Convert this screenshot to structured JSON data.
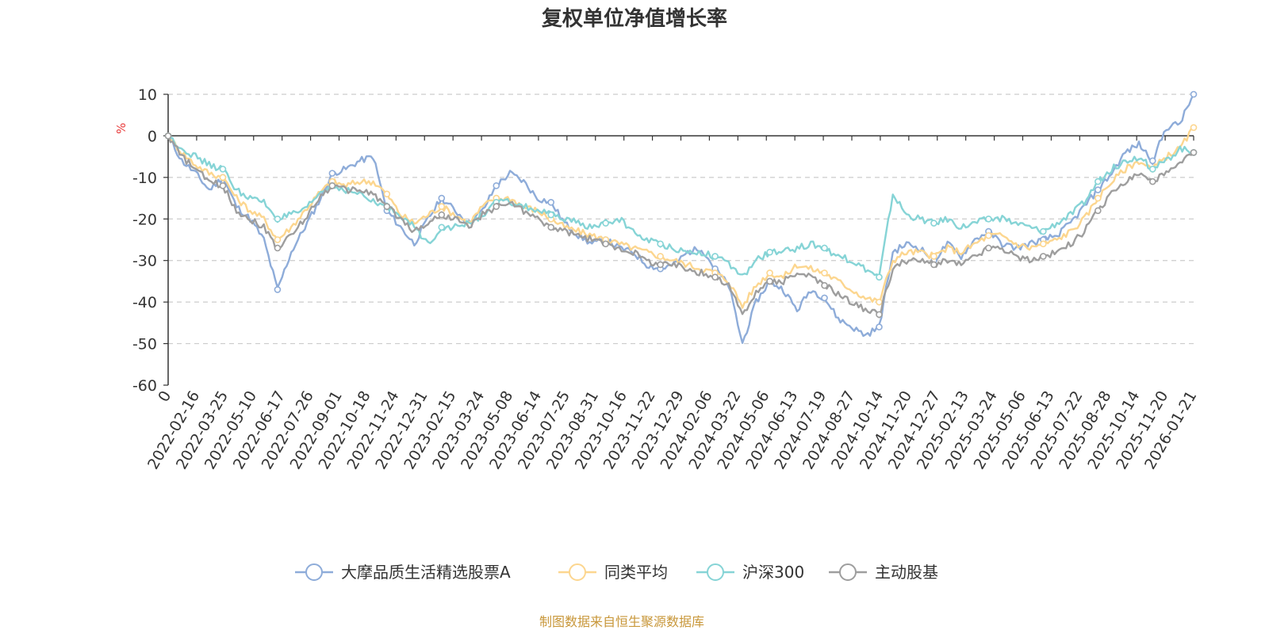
{
  "chart_data": {
    "type": "line",
    "title": "复权单位净值增长率",
    "ylabel": "%",
    "ylim": [
      -60,
      10
    ],
    "y_ticks": [
      10,
      0,
      -10,
      -20,
      -30,
      -40,
      -50,
      -60
    ],
    "x_start_label": "0",
    "x_tick_labels": [
      "2022-02-16",
      "2022-03-25",
      "2022-05-10",
      "2022-06-17",
      "2022-07-26",
      "2022-09-01",
      "2022-10-18",
      "2022-11-24",
      "2022-12-31",
      "2023-02-15",
      "2023-03-24",
      "2023-05-08",
      "2023-06-14",
      "2023-07-25",
      "2023-08-31",
      "2023-10-16",
      "2023-11-22",
      "2023-12-29",
      "2024-02-06",
      "2024-03-22",
      "2024-05-06",
      "2024-06-13",
      "2024-07-19",
      "2024-08-27",
      "2024-10-14",
      "2024-11-20",
      "2024-12-27",
      "2025-02-13",
      "2025-03-24",
      "2025-05-06",
      "2025-06-13",
      "2025-07-22",
      "2025-08-28",
      "2025-10-14",
      "2025-11-20",
      "2026-01-21"
    ],
    "grid": "horizontal dashed",
    "legend_position": "bottom",
    "series": [
      {
        "name": "大摩品质生活精选股票A",
        "color": "#8eacd9",
        "values": [
          0,
          -6,
          -9,
          -13,
          -10,
          -17,
          -20,
          -25,
          -37,
          -28,
          -22,
          -16,
          -9,
          -8,
          -6,
          -5,
          -18,
          -22,
          -26,
          -20,
          -15,
          -18,
          -21,
          -18,
          -12,
          -9,
          -11,
          -15,
          -16,
          -21,
          -24,
          -26,
          -25,
          -27,
          -28,
          -31,
          -32,
          -31,
          -28,
          -27,
          -32,
          -36,
          -50,
          -40,
          -35,
          -37,
          -42,
          -37,
          -39,
          -44,
          -46,
          -48,
          -46,
          -28,
          -26,
          -27,
          -30,
          -26,
          -29,
          -25,
          -23,
          -26,
          -27,
          -26,
          -25,
          -24,
          -21,
          -17,
          -13,
          -9,
          -4,
          -2,
          -6,
          2,
          3,
          10
        ]
      },
      {
        "name": "同类平均",
        "color": "#fcd68f",
        "values": [
          0,
          -4,
          -7,
          -9,
          -10,
          -15,
          -18,
          -20,
          -25,
          -22,
          -18,
          -14,
          -11,
          -12,
          -11,
          -11,
          -14,
          -19,
          -21,
          -19,
          -17,
          -19,
          -21,
          -17,
          -15,
          -15,
          -17,
          -18,
          -20,
          -22,
          -23,
          -24,
          -25,
          -26,
          -27,
          -28,
          -29,
          -30,
          -31,
          -32,
          -33,
          -35,
          -41,
          -36,
          -33,
          -34,
          -31,
          -32,
          -33,
          -35,
          -37,
          -39,
          -40,
          -30,
          -28,
          -28,
          -29,
          -27,
          -28,
          -26,
          -24,
          -24,
          -26,
          -27,
          -26,
          -25,
          -23,
          -20,
          -15,
          -11,
          -8,
          -6,
          -8,
          -5,
          -3,
          2
        ]
      },
      {
        "name": "沪深300",
        "color": "#86d4d6",
        "values": [
          0,
          -3,
          -5,
          -7,
          -8,
          -13,
          -15,
          -16,
          -20,
          -19,
          -18,
          -14,
          -12,
          -13,
          -14,
          -16,
          -17,
          -19,
          -22,
          -26,
          -22,
          -22,
          -21,
          -19,
          -16,
          -16,
          -17,
          -18,
          -19,
          -20,
          -21,
          -22,
          -21,
          -20,
          -23,
          -25,
          -26,
          -27,
          -28,
          -28,
          -29,
          -31,
          -34,
          -30,
          -28,
          -28,
          -27,
          -26,
          -27,
          -29,
          -30,
          -32,
          -34,
          -14,
          -19,
          -20,
          -21,
          -20,
          -22,
          -21,
          -20,
          -20,
          -21,
          -22,
          -23,
          -21,
          -19,
          -16,
          -11,
          -8,
          -6,
          -5,
          -8,
          -6,
          -3,
          -4
        ]
      },
      {
        "name": "主动股基",
        "color": "#9e9e9e",
        "values": [
          0,
          -5,
          -8,
          -11,
          -12,
          -18,
          -20,
          -22,
          -27,
          -24,
          -20,
          -15,
          -12,
          -13,
          -13,
          -14,
          -17,
          -20,
          -23,
          -21,
          -19,
          -20,
          -22,
          -19,
          -17,
          -16,
          -18,
          -20,
          -22,
          -23,
          -24,
          -25,
          -26,
          -27,
          -28,
          -30,
          -31,
          -31,
          -32,
          -33,
          -34,
          -36,
          -43,
          -38,
          -35,
          -35,
          -33,
          -34,
          -36,
          -38,
          -40,
          -42,
          -43,
          -32,
          -30,
          -30,
          -31,
          -30,
          -31,
          -29,
          -27,
          -27,
          -29,
          -30,
          -29,
          -28,
          -26,
          -23,
          -18,
          -14,
          -11,
          -9,
          -11,
          -9,
          -7,
          -4
        ]
      }
    ]
  },
  "legend": {
    "items": [
      "大摩品质生活精选股票A",
      "同类平均",
      "沪深300",
      "主动股基"
    ]
  },
  "source_note": "制图数据来自恒生聚源数据库"
}
